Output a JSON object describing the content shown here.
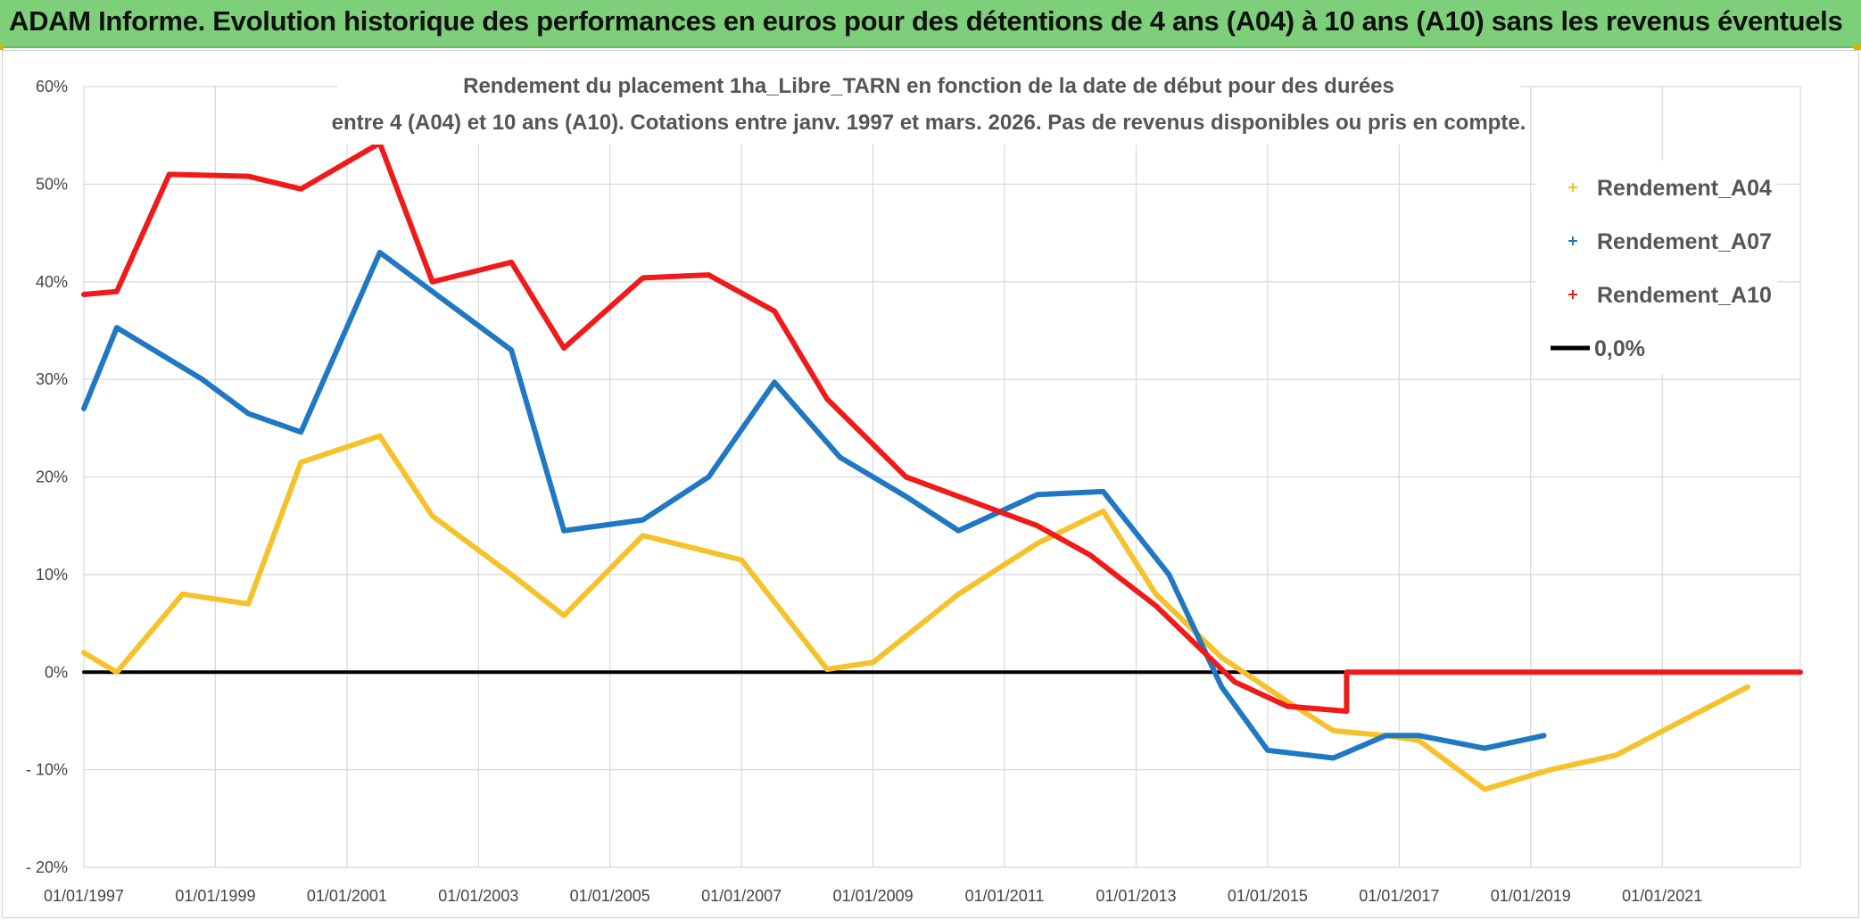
{
  "banner": {
    "title": "ADAM Informe. Evolution historique des performances en euros pour des détentions de 4 ans (A04) à 10 ans (A10) sans les revenus éventuels",
    "color": "#7dcf7a"
  },
  "chart_data": {
    "type": "line",
    "title_line1": "Rendement du placement 1ha_Libre_TARN en fonction de la date de début pour des durées",
    "title_line2": "entre 4 (A04) et 10 ans (A10). Cotations entre janv. 1997 et mars. 2026. Pas de revenus disponibles ou pris en compte.",
    "xlim": [
      1997.0,
      2023.1
    ],
    "ylim": [
      -20,
      60
    ],
    "y_ticks": [
      60,
      50,
      40,
      30,
      20,
      10,
      0,
      -10,
      -20
    ],
    "y_tick_labels": [
      "60%",
      "50%",
      "40%",
      "30%",
      "20%",
      "10%",
      "0%",
      "- 10%",
      "- 20%"
    ],
    "x_ticks": [
      1997,
      1999,
      2001,
      2003,
      2005,
      2007,
      2009,
      2011,
      2013,
      2015,
      2017,
      2019,
      2021
    ],
    "x_tick_labels": [
      "01/01/1997",
      "01/01/1999",
      "01/01/2001",
      "01/01/2003",
      "01/01/2005",
      "01/01/2007",
      "01/01/2009",
      "01/01/2011",
      "01/01/2013",
      "01/01/2015",
      "01/01/2017",
      "01/01/2019",
      "01/01/2021"
    ],
    "grid": true,
    "legend_position": "top-right",
    "series": [
      {
        "name": "Rendement_A04",
        "color": "#f5c22b",
        "points": [
          [
            1997.0,
            2
          ],
          [
            1997.5,
            0
          ],
          [
            1998.5,
            8
          ],
          [
            1999.5,
            7
          ],
          [
            2000.3,
            21.5
          ],
          [
            2001.5,
            24.2
          ],
          [
            2002.3,
            16
          ],
          [
            2003.5,
            10
          ],
          [
            2004.3,
            5.8
          ],
          [
            2005.5,
            14
          ],
          [
            2007.0,
            11.5
          ],
          [
            2008.3,
            0.3
          ],
          [
            2009.0,
            1
          ],
          [
            2010.3,
            8
          ],
          [
            2011.5,
            13.2
          ],
          [
            2012.5,
            16.5
          ],
          [
            2013.3,
            8
          ],
          [
            2014.3,
            1.5
          ],
          [
            2015.3,
            -3
          ],
          [
            2016.0,
            -6
          ],
          [
            2016.8,
            -6.5
          ],
          [
            2017.3,
            -7
          ],
          [
            2018.3,
            -12
          ],
          [
            2019.3,
            -10
          ],
          [
            2020.3,
            -8.5
          ],
          [
            2021.3,
            -5
          ],
          [
            2022.3,
            -1.5
          ]
        ]
      },
      {
        "name": "Rendement_A07",
        "color": "#1f78c1",
        "points": [
          [
            1997.0,
            27
          ],
          [
            1997.5,
            35.3
          ],
          [
            1998.8,
            30
          ],
          [
            1999.5,
            26.5
          ],
          [
            2000.3,
            24.6
          ],
          [
            2001.5,
            43
          ],
          [
            2002.5,
            38
          ],
          [
            2003.5,
            33
          ],
          [
            2004.3,
            14.5
          ],
          [
            2005.5,
            15.6
          ],
          [
            2006.5,
            20
          ],
          [
            2007.5,
            29.7
          ],
          [
            2008.5,
            22
          ],
          [
            2009.5,
            18
          ],
          [
            2010.3,
            14.5
          ],
          [
            2011.5,
            18.2
          ],
          [
            2012.5,
            18.5
          ],
          [
            2013.5,
            10
          ],
          [
            2014.3,
            -1.5
          ],
          [
            2015.0,
            -8
          ],
          [
            2016.0,
            -8.8
          ],
          [
            2016.8,
            -6.5
          ],
          [
            2017.3,
            -6.5
          ],
          [
            2018.3,
            -7.8
          ],
          [
            2019.2,
            -6.5
          ]
        ]
      },
      {
        "name": "Rendement_A10",
        "color": "#ef1b1b",
        "points": [
          [
            1997.0,
            38.7
          ],
          [
            1997.5,
            39
          ],
          [
            1998.3,
            51
          ],
          [
            1999.5,
            50.8
          ],
          [
            2000.3,
            49.5
          ],
          [
            2001.5,
            54.2
          ],
          [
            2002.3,
            40
          ],
          [
            2003.5,
            42
          ],
          [
            2004.3,
            33.2
          ],
          [
            2005.5,
            40.4
          ],
          [
            2006.5,
            40.7
          ],
          [
            2007.5,
            37
          ],
          [
            2008.3,
            28
          ],
          [
            2009.5,
            20
          ],
          [
            2010.5,
            17.5
          ],
          [
            2011.5,
            15
          ],
          [
            2012.3,
            12
          ],
          [
            2013.3,
            6.8
          ],
          [
            2014.5,
            -1
          ],
          [
            2015.3,
            -3.5
          ],
          [
            2016.2,
            -4
          ],
          [
            2016.2,
            0
          ],
          [
            2023.1,
            0
          ]
        ]
      },
      {
        "name": "0,0%",
        "color": "#000000",
        "points": [
          [
            1997.0,
            0
          ],
          [
            2023.1,
            0
          ]
        ]
      }
    ]
  }
}
